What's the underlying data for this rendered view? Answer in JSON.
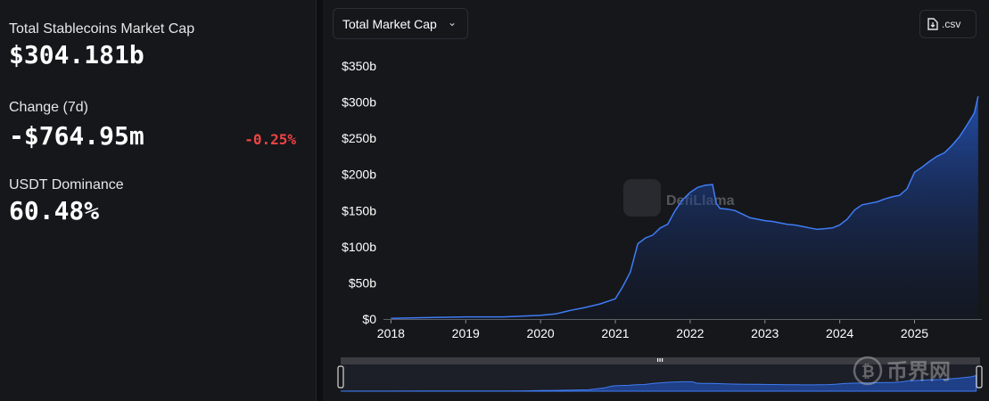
{
  "stats": {
    "market_cap_label": "Total Stablecoins Market Cap",
    "market_cap_value": "$304.181b",
    "change_label": "Change (7d)",
    "change_value": "-$764.95m",
    "change_pct": "-0.25%",
    "dominance_label": "USDT Dominance",
    "dominance_value": "60.48%"
  },
  "toolbar": {
    "metric_select": "Total Market Cap",
    "csv_label": ".csv"
  },
  "watermark": {
    "text": "DefiLlama",
    "corner_text": "币界网"
  },
  "colors": {
    "line": "#3f7cf5",
    "negative": "#f04444",
    "background": "#16171b"
  },
  "icons": {
    "select_chevron": "chevron-down-icon",
    "csv": "file-download-icon",
    "slider_grip": "grip-icon"
  },
  "chart_data": {
    "type": "area",
    "y_tick_labels": [
      "$0",
      "$50b",
      "$100b",
      "$150b",
      "$200b",
      "$250b",
      "$300b",
      "$350b"
    ],
    "x_tick_labels": [
      "2018",
      "2019",
      "2020",
      "2021",
      "2022",
      "2023",
      "2024",
      "2025"
    ],
    "x_ticks": [
      2018,
      2019,
      2020,
      2021,
      2022,
      2023,
      2024,
      2025
    ],
    "ylim": [
      0,
      350
    ],
    "xlim": [
      2017.9,
      2025.9
    ],
    "grid": false,
    "series": [
      {
        "x": [
          2018.0,
          2018.5,
          2019.0,
          2019.5,
          2020.0,
          2020.2,
          2020.4,
          2020.6,
          2020.8,
          2021.0,
          2021.1,
          2021.2,
          2021.3,
          2021.4,
          2021.5,
          2021.6,
          2021.7,
          2021.8,
          2021.9,
          2022.0,
          2022.1,
          2022.2,
          2022.3,
          2022.35,
          2022.4,
          2022.5,
          2022.6,
          2022.7,
          2022.8,
          2022.9,
          2023.0,
          2023.1,
          2023.2,
          2023.3,
          2023.4,
          2023.5,
          2023.6,
          2023.7,
          2023.8,
          2023.9,
          2024.0,
          2024.1,
          2024.2,
          2024.3,
          2024.4,
          2024.5,
          2024.6,
          2024.7,
          2024.8,
          2024.9,
          2025.0,
          2025.1,
          2025.2,
          2025.3,
          2025.4,
          2025.5,
          2025.6,
          2025.7,
          2025.8,
          2025.85
        ],
        "values": [
          1,
          2,
          3,
          3,
          5,
          7,
          12,
          16,
          21,
          28,
          45,
          65,
          104,
          112,
          116,
          126,
          131,
          150,
          165,
          175,
          182,
          185,
          186,
          160,
          153,
          152,
          150,
          145,
          140,
          138,
          136,
          135,
          133,
          131,
          130,
          128,
          126,
          124,
          125,
          126,
          130,
          138,
          151,
          158,
          160,
          162,
          166,
          169,
          171,
          180,
          203,
          210,
          218,
          225,
          230,
          240,
          252,
          268,
          285,
          308
        ]
      }
    ]
  }
}
